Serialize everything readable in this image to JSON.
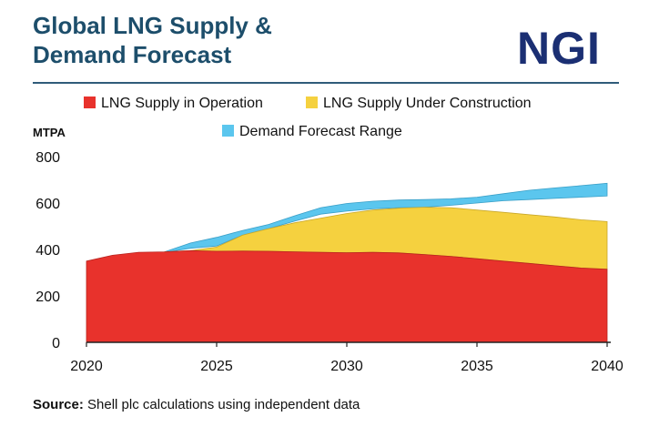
{
  "header": {
    "title_line1": "Global LNG Supply &",
    "title_line2": "Demand Forecast",
    "logo_text": "NGI"
  },
  "source": {
    "label": "Source:",
    "text": " Shell plc calculations using independent data"
  },
  "chart_data": {
    "type": "area",
    "ylabel": "MTPA",
    "ylim": [
      0,
      800
    ],
    "xlim": [
      2020,
      2040
    ],
    "x_ticks": [
      "2020",
      "2025",
      "2030",
      "2035",
      "2040"
    ],
    "y_ticks": [
      "0",
      "200",
      "400",
      "600",
      "800"
    ],
    "grid": false,
    "legend_position": "top",
    "series": [
      {
        "name": "LNG Supply in Operation",
        "color": "#e8322c",
        "x": [
          2020,
          2021,
          2022,
          2023,
          2024,
          2025,
          2026,
          2027,
          2028,
          2029,
          2030,
          2031,
          2032,
          2033,
          2034,
          2035,
          2036,
          2037,
          2038,
          2039,
          2040
        ],
        "values": [
          350,
          375,
          388,
          390,
          395,
          392,
          393,
          392,
          390,
          388,
          386,
          388,
          385,
          378,
          370,
          360,
          350,
          340,
          330,
          320,
          315
        ]
      },
      {
        "name": "LNG Supply Under Construction",
        "color": "#f5d13f",
        "x": [
          2023,
          2024,
          2025,
          2026,
          2027,
          2028,
          2029,
          2030,
          2031,
          2032,
          2033,
          2034,
          2035,
          2036,
          2037,
          2038,
          2039,
          2040
        ],
        "top_values": [
          390,
          395,
          410,
          462,
          490,
          515,
          535,
          555,
          570,
          578,
          582,
          580,
          570,
          560,
          550,
          540,
          528,
          520
        ]
      },
      {
        "name": "Demand Forecast Range",
        "color": "#5bc6ee",
        "x": [
          2023,
          2024,
          2025,
          2026,
          2027,
          2028,
          2029,
          2030,
          2031,
          2032,
          2033,
          2034,
          2035,
          2036,
          2037,
          2038,
          2039,
          2040
        ],
        "low": [
          388,
          405,
          415,
          462,
          490,
          522,
          552,
          565,
          575,
          580,
          582,
          590,
          600,
          610,
          615,
          620,
          625,
          630
        ],
        "high": [
          390,
          428,
          452,
          482,
          508,
          545,
          580,
          598,
          608,
          613,
          615,
          618,
          625,
          640,
          655,
          665,
          675,
          685
        ]
      }
    ]
  }
}
